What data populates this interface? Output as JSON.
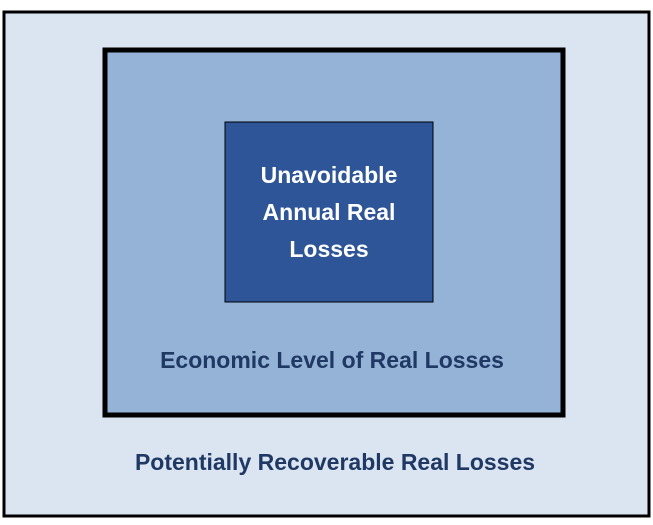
{
  "outer": {
    "label": "Potentially Recoverable Real Losses"
  },
  "middle": {
    "label": "Economic Level of Real Losses"
  },
  "inner": {
    "label_lines": [
      "Unavoidable",
      "Annual Real",
      "Losses"
    ]
  }
}
